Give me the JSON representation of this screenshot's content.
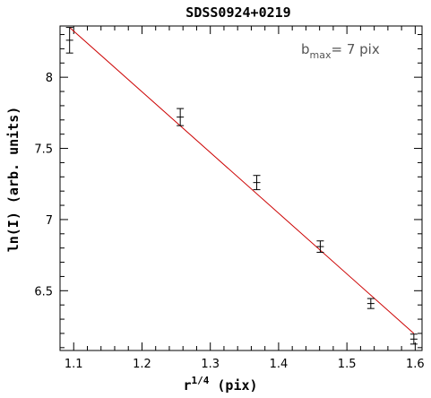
{
  "chart_data": {
    "type": "scatter",
    "title": "SDSS0924+0219",
    "xlabel_base": "r",
    "xlabel_exp": "1/4",
    "xlabel_rest": " (pix)",
    "ylabel": "ln(I)  (arb. units)",
    "annotation": {
      "base": "b",
      "sub": "max",
      "rest": "= 7 pix"
    },
    "xlim": [
      1.08,
      1.61
    ],
    "ylim": [
      6.08,
      8.36
    ],
    "x_ticks": [
      1.1,
      1.2,
      1.3,
      1.4,
      1.5,
      1.6
    ],
    "x_tick_labels": [
      "1.1",
      "1.2",
      "1.3",
      "1.4",
      "1.5",
      "1.6"
    ],
    "y_ticks": [
      6.5,
      7,
      7.5,
      8
    ],
    "y_tick_labels": [
      "6.5",
      "7",
      "7.5",
      "8"
    ],
    "points": [
      {
        "x": 1.094,
        "y": 8.26,
        "err": 0.09
      },
      {
        "x": 1.256,
        "y": 7.72,
        "err": 0.06
      },
      {
        "x": 1.368,
        "y": 7.26,
        "err": 0.05
      },
      {
        "x": 1.461,
        "y": 6.81,
        "err": 0.04
      },
      {
        "x": 1.535,
        "y": 6.41,
        "err": 0.035
      },
      {
        "x": 1.598,
        "y": 6.16,
        "err": 0.035
      }
    ],
    "fit_line": {
      "x": [
        1.094,
        1.598
      ],
      "y": [
        8.35,
        6.2
      ],
      "color": "#cc0000"
    },
    "grid": false
  }
}
